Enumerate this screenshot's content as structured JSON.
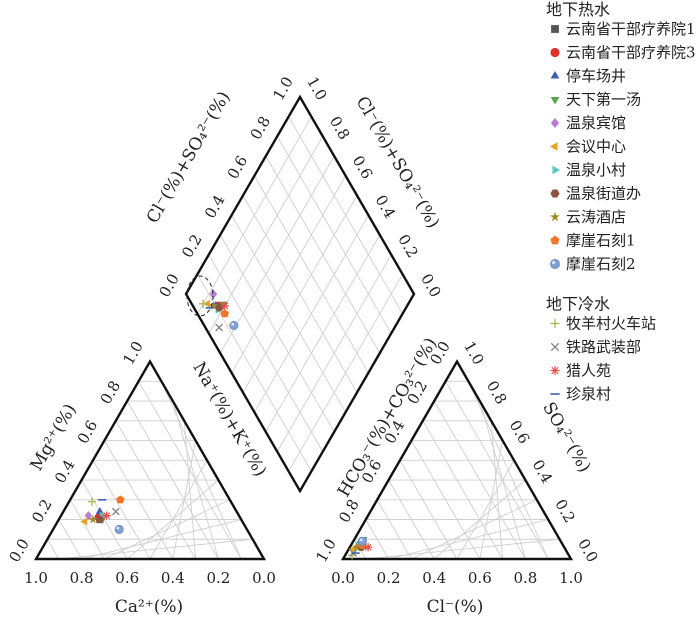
{
  "chart_data": {
    "type": "scatter",
    "diagram": "piper",
    "title": "",
    "cation_triangle": {
      "xlabel": "Ca²⁺(%)",
      "left_label": "Mg²⁺(%)",
      "right_label": "Na⁺(%)+K⁺(%)",
      "bottom_ticks": [
        "1.0",
        "0.8",
        "0.6",
        "0.4",
        "0.2",
        "0.0"
      ],
      "left_ticks": [
        "0.0",
        "0.2",
        "0.4",
        "0.6",
        "0.8",
        "1.0"
      ]
    },
    "anion_triangle": {
      "xlabel": "Cl⁻(%)",
      "left_label": "HCO₃⁻(%)+CO₃²⁻(%)",
      "right_label": "SO₄²⁻(%)",
      "bottom_ticks": [
        "0.0",
        "0.2",
        "0.4",
        "0.6",
        "0.8",
        "1.0"
      ],
      "left_ticks": [
        "1.0",
        "0.8",
        "0.6",
        "0.4",
        "0.2",
        "0.0"
      ],
      "right_ticks": [
        "1.0",
        "0.8",
        "0.6",
        "0.4",
        "0.2",
        "0.0"
      ]
    },
    "diamond": {
      "upper_left_label": "Cl⁻(%)+SO₄²⁻(%)",
      "upper_right_label": "Cl⁻(%)+SO₄²⁻(%)",
      "upper_left_ticks": [
        "0.0",
        "0.2",
        "0.4",
        "0.6",
        "0.8",
        "1.0"
      ],
      "upper_right_ticks": [
        "1.0",
        "0.8",
        "0.6",
        "0.4",
        "0.2",
        "0.0"
      ]
    },
    "legend": {
      "groups": [
        {
          "title": "地下热水",
          "items": [
            {
              "name": "云南省干部疗养院1",
              "marker": "square",
              "color": "#555555"
            },
            {
              "name": "云南省干部疗养院3",
              "marker": "circle",
              "color": "#e0302c"
            },
            {
              "name": "停车场井",
              "marker": "triangle-up",
              "color": "#3a62b0"
            },
            {
              "name": "天下第一汤",
              "marker": "triangle-down",
              "color": "#55a84a"
            },
            {
              "name": "温泉宾馆",
              "marker": "diamond",
              "color": "#b87fd0"
            },
            {
              "name": "会议中心",
              "marker": "triangle-left",
              "color": "#e8a326"
            },
            {
              "name": "温泉小村",
              "marker": "triangle-right",
              "color": "#5fc8c0"
            },
            {
              "name": "温泉街道办",
              "marker": "hexagon",
              "color": "#8a5440"
            },
            {
              "name": "云涛酒店",
              "marker": "star",
              "color": "#a48a2a"
            },
            {
              "name": "摩崖石刻1",
              "marker": "pentagon",
              "color": "#f0762a"
            },
            {
              "name": "摩崖石刻2",
              "marker": "sphere",
              "color": "#7f9fd6"
            }
          ]
        },
        {
          "title": "地下冷水",
          "items": [
            {
              "name": "牧羊村火车站",
              "marker": "plus",
              "color": "#a6b94a"
            },
            {
              "name": "铁路武装部",
              "marker": "x",
              "color": "#8a7f80"
            },
            {
              "name": "猎人苑",
              "marker": "asterisk",
              "color": "#e3504a"
            },
            {
              "name": "珍泉村",
              "marker": "dash",
              "color": "#3a62b0"
            }
          ]
        }
      ]
    },
    "samples": [
      {
        "name": "云南省干部疗养院1",
        "ca": 0.62,
        "mg": 0.2,
        "na": 0.18,
        "hco3": 0.88,
        "cl": 0.05,
        "so4": 0.07
      },
      {
        "name": "云南省干部疗养院3",
        "ca": 0.62,
        "mg": 0.21,
        "na": 0.17,
        "hco3": 0.89,
        "cl": 0.04,
        "so4": 0.07
      },
      {
        "name": "停车场井",
        "ca": 0.6,
        "mg": 0.24,
        "na": 0.16,
        "hco3": 0.9,
        "cl": 0.03,
        "so4": 0.07
      },
      {
        "name": "天下第一汤",
        "ca": 0.61,
        "mg": 0.2,
        "na": 0.19,
        "hco3": 0.86,
        "cl": 0.04,
        "so4": 0.1
      },
      {
        "name": "温泉宾馆",
        "ca": 0.66,
        "mg": 0.22,
        "na": 0.12,
        "hco3": 0.88,
        "cl": 0.04,
        "so4": 0.08
      },
      {
        "name": "会议中心",
        "ca": 0.69,
        "mg": 0.19,
        "na": 0.12,
        "hco3": 0.93,
        "cl": 0.02,
        "so4": 0.05
      },
      {
        "name": "温泉小村",
        "ca": 0.6,
        "mg": 0.22,
        "na": 0.18,
        "hco3": 0.9,
        "cl": 0.03,
        "so4": 0.07
      },
      {
        "name": "温泉街道办",
        "ca": 0.62,
        "mg": 0.2,
        "na": 0.18,
        "hco3": 0.89,
        "cl": 0.05,
        "so4": 0.06
      },
      {
        "name": "云涛酒店",
        "ca": 0.65,
        "mg": 0.2,
        "na": 0.15,
        "hco3": 0.91,
        "cl": 0.03,
        "so4": 0.06
      },
      {
        "name": "摩崖石刻1",
        "ca": 0.48,
        "mg": 0.3,
        "na": 0.22,
        "hco3": 0.88,
        "cl": 0.05,
        "so4": 0.07
      },
      {
        "name": "摩崖石刻2",
        "ca": 0.56,
        "mg": 0.15,
        "na": 0.29,
        "hco3": 0.87,
        "cl": 0.04,
        "so4": 0.09
      },
      {
        "name": "牧羊村火车站",
        "ca": 0.61,
        "mg": 0.29,
        "na": 0.1,
        "hco3": 0.95,
        "cl": 0.03,
        "so4": 0.02
      },
      {
        "name": "铁路武装部",
        "ca": 0.53,
        "mg": 0.24,
        "na": 0.23,
        "hco3": 0.94,
        "cl": 0.03,
        "so4": 0.03
      },
      {
        "name": "猎人苑",
        "ca": 0.58,
        "mg": 0.22,
        "na": 0.2,
        "hco3": 0.86,
        "cl": 0.08,
        "so4": 0.06
      },
      {
        "name": "珍泉村",
        "ca": 0.56,
        "mg": 0.3,
        "na": 0.14,
        "hco3": 0.93,
        "cl": 0.04,
        "so4": 0.03
      }
    ]
  }
}
